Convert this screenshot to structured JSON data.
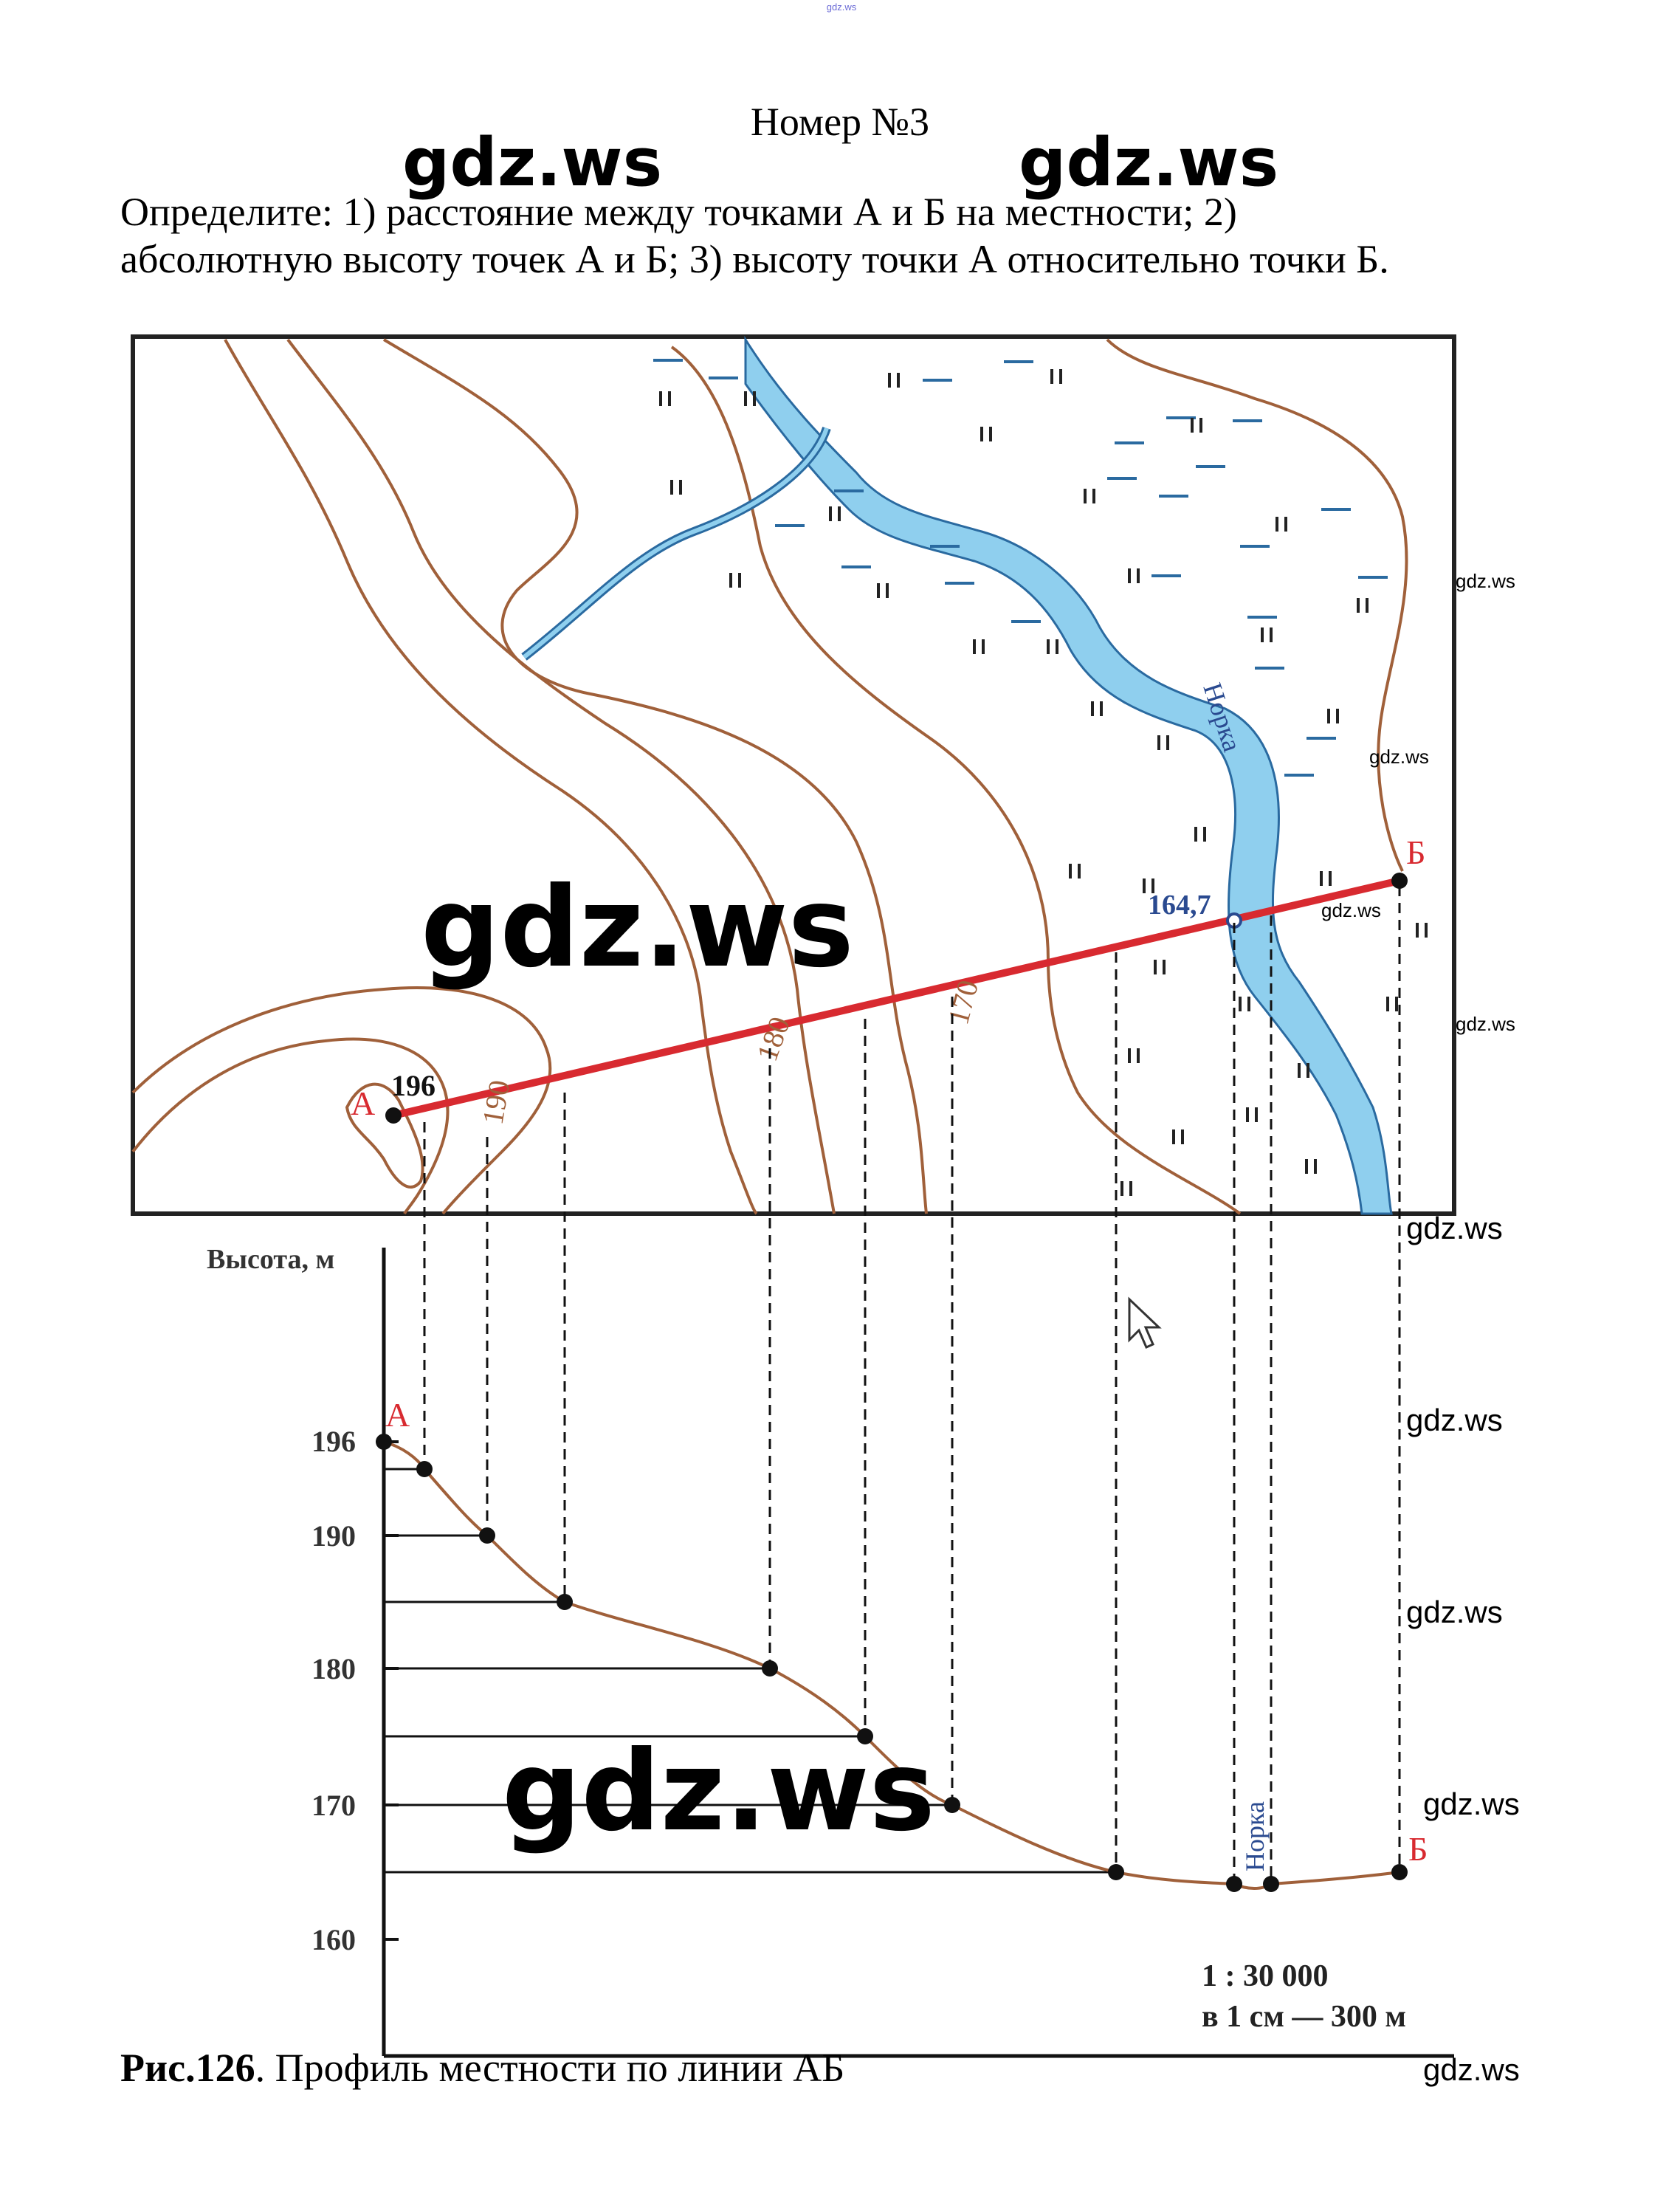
{
  "header": {
    "tiny_watermark": "gdz.ws",
    "title": "Номер №3",
    "task_line1": "Определите: 1) расстояние между точками А и Б на местности; 2)",
    "task_line2": "абсолютную высоту точек А и Б; 3) высоту точки А относительно точки Б."
  },
  "map": {
    "river_name": "Норка",
    "point_a": "А",
    "point_b": "Б",
    "height_a": "196",
    "height_river": "164,7",
    "contour_labels": [
      "190",
      "180",
      "170"
    ]
  },
  "profile": {
    "axis_title": "Высота, м",
    "y_ticks": [
      "196",
      "190",
      "180",
      "170",
      "160"
    ],
    "label_a": "А",
    "label_b": "Б",
    "river_label": "Норка",
    "scale_line1": "1 : 30 000",
    "scale_line2": "в 1 см — 300 м"
  },
  "caption": {
    "bold": "Рис.126",
    "text": ". Профиль местности по линии АБ"
  },
  "watermarks": {
    "text": "gdz.ws"
  },
  "colors": {
    "contour": "#a0603a",
    "river": "#8fcfee",
    "river_edge": "#2a6aa0",
    "line_ab": "#d82a30",
    "marsh": "#2a6aa0",
    "label_red": "#d82a30",
    "label_blue": "#2a4a90"
  }
}
